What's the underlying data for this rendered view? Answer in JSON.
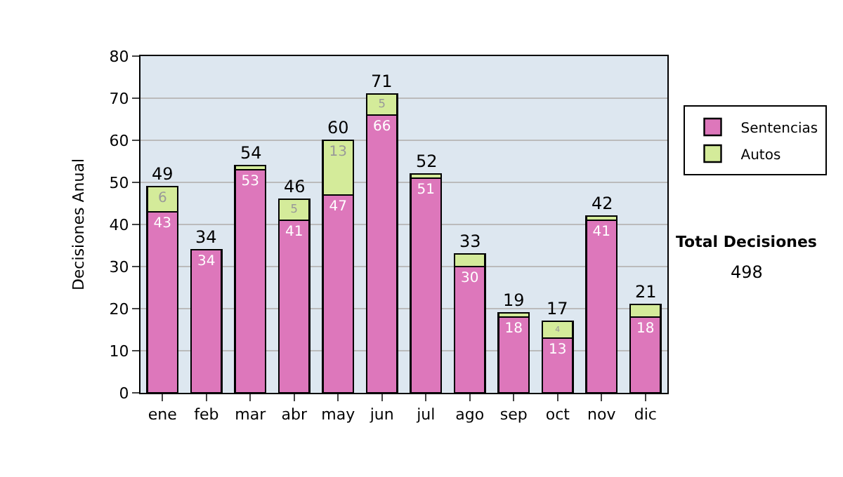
{
  "chart_data": {
    "type": "bar",
    "stacked": true,
    "ylabel": "Decisiones Anual",
    "categories": [
      "ene",
      "feb",
      "mar",
      "abr",
      "may",
      "jun",
      "jul",
      "ago",
      "sep",
      "oct",
      "nov",
      "dic"
    ],
    "series": [
      {
        "name": "Sentencias",
        "color": "#dd77bb",
        "values": [
          43,
          34,
          53,
          41,
          47,
          66,
          51,
          30,
          18,
          13,
          41,
          18
        ],
        "value_labels": [
          "43",
          "34",
          "53",
          "41",
          "47",
          "66",
          "51",
          "30",
          "18",
          "13",
          "41",
          "18"
        ]
      },
      {
        "name": "Autos",
        "color": "#d4eb9a",
        "values": [
          6,
          0,
          1,
          5,
          13,
          5,
          1,
          3,
          1,
          4,
          1,
          3
        ],
        "value_labels": [
          "6",
          null,
          null,
          "5",
          "13",
          "5",
          null,
          null,
          null,
          "4",
          null,
          null
        ]
      }
    ],
    "totals": [
      "49",
      "34",
      "54",
      "46",
      "60",
      "71",
      "52",
      "33",
      "19",
      "17",
      "42",
      "21"
    ],
    "ylim": [
      0,
      80
    ],
    "yticks": [
      0,
      10,
      20,
      30,
      40,
      50,
      60,
      70,
      80
    ],
    "grid": "y",
    "legend": "right",
    "annotations": [
      "Total Decisiones",
      "498"
    ]
  }
}
